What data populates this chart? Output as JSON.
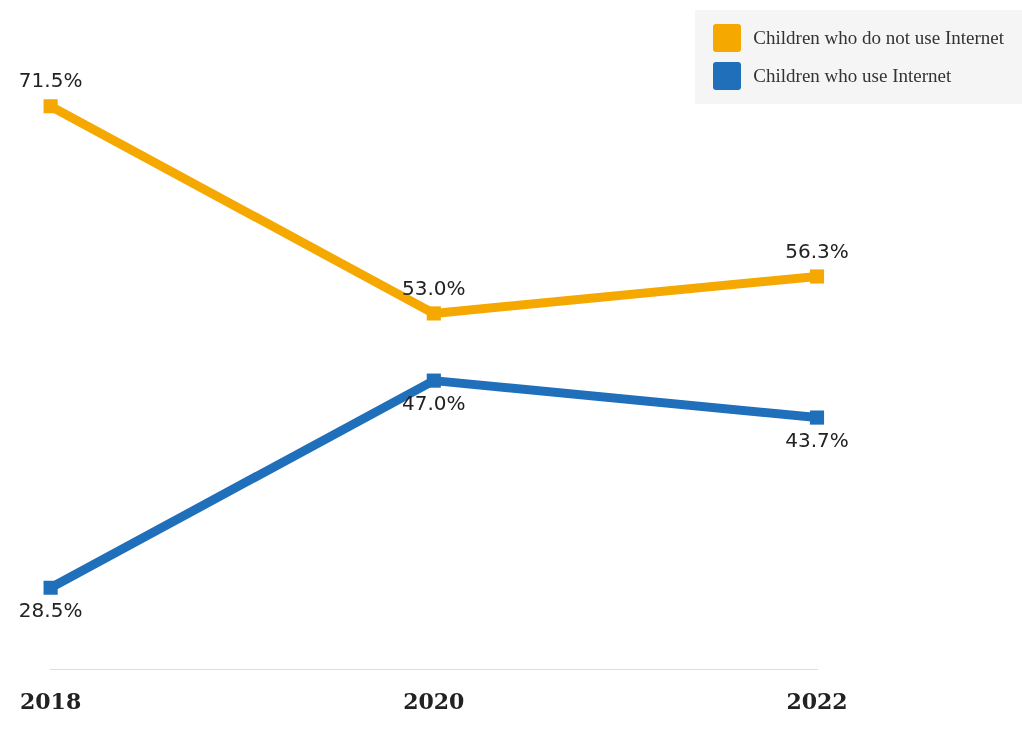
{
  "chart_data": {
    "type": "line",
    "categories": [
      "2018",
      "2020",
      "2022"
    ],
    "series": [
      {
        "name": "Children who do not use Internet",
        "color": "#f5a800",
        "values": [
          71.5,
          53.0,
          56.3
        ],
        "value_labels": [
          "71.5%",
          "53.0%",
          "56.3%"
        ]
      },
      {
        "name": "Children who use Internet",
        "color": "#1f6fba",
        "values": [
          28.5,
          47.0,
          43.7
        ],
        "value_labels": [
          "28.5%",
          "47.0%",
          "43.7%"
        ]
      }
    ],
    "legend": "top right",
    "grid": false,
    "marker": "square",
    "line_style": "solid"
  }
}
